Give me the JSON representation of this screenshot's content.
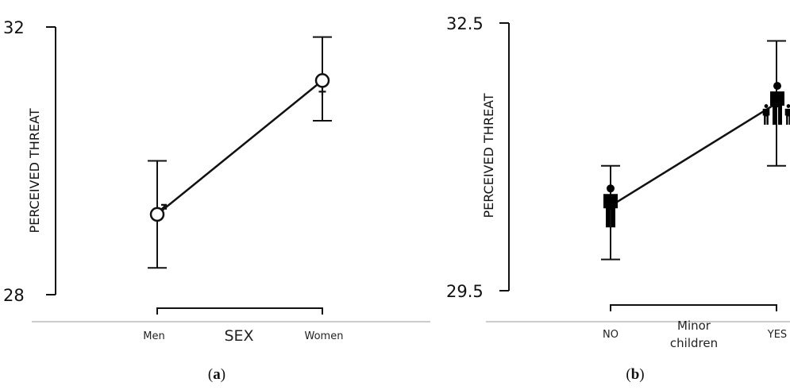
{
  "chart_data": [
    {
      "type": "line",
      "caption_open": "(",
      "caption_letter": "a",
      "caption_close": ")",
      "ylabel": "PERCEIVED THREAT",
      "xlabel": "SEX",
      "ylim": [
        28,
        32
      ],
      "yticks": [
        "32",
        "28"
      ],
      "categories": [
        "Men",
        "Women"
      ],
      "markers": [
        "male-symbol",
        "female-symbol"
      ],
      "values": [
        29.2,
        31.2
      ],
      "error_low": [
        28.4,
        30.6
      ],
      "error_high": [
        30.0,
        31.85
      ]
    },
    {
      "type": "line",
      "caption_open": "(",
      "caption_letter": "b",
      "caption_close": ")",
      "ylabel": "PERCEIVED THREAT",
      "xlabel": "Minor children",
      "xlabel_lines": [
        "Minor",
        "children"
      ],
      "ylim": [
        29.5,
        32.5
      ],
      "yticks": [
        "32.5",
        "29.5"
      ],
      "categories": [
        "NO",
        "YES"
      ],
      "markers": [
        "single-person",
        "parent-with-children"
      ],
      "values": [
        30.45,
        31.6
      ],
      "error_low": [
        29.85,
        30.9
      ],
      "error_high": [
        30.9,
        32.3
      ]
    }
  ]
}
